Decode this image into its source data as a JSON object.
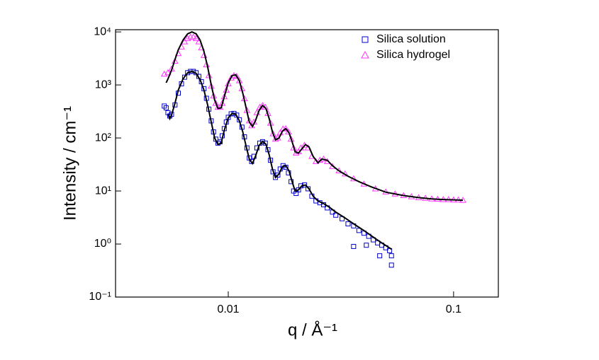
{
  "chart_data": {
    "type": "scatter",
    "x_label": "q / Å⁻¹",
    "y_label": "Intensity / cm⁻¹",
    "log_x": true,
    "log_y": true,
    "legend": "upper right",
    "xlim": [
      0.00316,
      0.158
    ],
    "ylim": [
      0.1,
      11000
    ],
    "xticks": [
      0.01,
      0.1
    ],
    "yticks": [
      {
        "value": 0.1,
        "label": "10⁻¹"
      },
      {
        "value": 1,
        "label": "10⁰"
      },
      {
        "value": 10,
        "label": "10¹"
      },
      {
        "value": 100,
        "label": "10²"
      },
      {
        "value": 1000,
        "label": "10³"
      },
      {
        "value": 10000,
        "label": "10⁴"
      }
    ],
    "series": [
      {
        "name": "Silica solution",
        "color": "#0000cc",
        "marker": "square",
        "x": [
          0.0052,
          0.0053,
          0.0054,
          0.0055,
          0.0056,
          0.0058,
          0.006,
          0.0062,
          0.0064,
          0.0066,
          0.0068,
          0.007,
          0.0072,
          0.0074,
          0.0076,
          0.0078,
          0.008,
          0.0082,
          0.0084,
          0.0086,
          0.0088,
          0.009,
          0.0092,
          0.0094,
          0.0096,
          0.0098,
          0.01,
          0.0103,
          0.0106,
          0.0109,
          0.0112,
          0.0115,
          0.0118,
          0.0121,
          0.0124,
          0.0127,
          0.013,
          0.0134,
          0.0138,
          0.0142,
          0.0146,
          0.015,
          0.0154,
          0.0158,
          0.0162,
          0.0166,
          0.017,
          0.0175,
          0.018,
          0.0185,
          0.019,
          0.0195,
          0.02,
          0.0205,
          0.021,
          0.0218,
          0.0226,
          0.0235,
          0.0245,
          0.0255,
          0.0265,
          0.0275,
          0.029,
          0.03,
          0.032,
          0.034,
          0.036,
          0.038,
          0.04,
          0.042,
          0.044,
          0.046,
          0.048,
          0.05,
          0.052,
          0.053,
          0.036,
          0.041,
          0.047,
          0.053
        ],
        "values": [
          400,
          370,
          300,
          260,
          280,
          420,
          700,
          1050,
          1400,
          1700,
          1800,
          1800,
          1700,
          1450,
          1150,
          850,
          560,
          350,
          210,
          130,
          95,
          80,
          85,
          110,
          150,
          200,
          245,
          285,
          290,
          270,
          220,
          160,
          105,
          65,
          42,
          36,
          45,
          65,
          80,
          85,
          80,
          60,
          38,
          23,
          18,
          20,
          26,
          30,
          28,
          22,
          15,
          10,
          9,
          10.5,
          12.5,
          13,
          11,
          8,
          6.5,
          6,
          5.5,
          4.8,
          4,
          3.5,
          3,
          2.4,
          2.2,
          1.8,
          1.6,
          1.4,
          1.2,
          1.05,
          0.95,
          0.85,
          0.75,
          0.6,
          0.9,
          0.95,
          0.6,
          0.4
        ]
      },
      {
        "name": "Silica hydrogel",
        "color": "#ff33ff",
        "marker": "triangle",
        "x": [
          0.0052,
          0.0054,
          0.0056,
          0.0058,
          0.006,
          0.0062,
          0.0064,
          0.0066,
          0.0068,
          0.007,
          0.0072,
          0.0074,
          0.0076,
          0.0078,
          0.008,
          0.0082,
          0.0084,
          0.0086,
          0.0088,
          0.009,
          0.0092,
          0.0094,
          0.0096,
          0.0098,
          0.01,
          0.0103,
          0.0106,
          0.0109,
          0.0112,
          0.0115,
          0.0118,
          0.0121,
          0.0124,
          0.0127,
          0.013,
          0.0134,
          0.0138,
          0.0142,
          0.0146,
          0.015,
          0.0154,
          0.0158,
          0.0162,
          0.0166,
          0.017,
          0.0175,
          0.018,
          0.0185,
          0.019,
          0.0195,
          0.02,
          0.0205,
          0.021,
          0.0218,
          0.0226,
          0.0235,
          0.0245,
          0.0255,
          0.0265,
          0.0275,
          0.029,
          0.031,
          0.033,
          0.036,
          0.04,
          0.045,
          0.05,
          0.055,
          0.06,
          0.065,
          0.07,
          0.075,
          0.08,
          0.085,
          0.09,
          0.095,
          0.1,
          0.105,
          0.11
        ],
        "values": [
          1600,
          1700,
          2000,
          2800,
          3900,
          5200,
          6500,
          7500,
          8000,
          8000,
          7500,
          6500,
          5000,
          3600,
          2400,
          1500,
          950,
          620,
          450,
          380,
          380,
          450,
          600,
          800,
          1050,
          1350,
          1500,
          1450,
          1200,
          850,
          550,
          330,
          210,
          170,
          200,
          300,
          380,
          410,
          380,
          290,
          190,
          120,
          95,
          100,
          125,
          148,
          150,
          130,
          95,
          65,
          52,
          55,
          65,
          73,
          65,
          45,
          36,
          38,
          40,
          36,
          29,
          24,
          21,
          17,
          13.5,
          11,
          9.6,
          8.8,
          8.2,
          7.8,
          7.5,
          7.3,
          7.1,
          7,
          6.9,
          6.9,
          6.8,
          6.8,
          6.7
        ]
      },
      {
        "color": "#000000",
        "style": "line",
        "x": [
          0.0054,
          0.0055,
          0.0056,
          0.0058,
          0.006,
          0.0063,
          0.0066,
          0.0069,
          0.0072,
          0.0075,
          0.0078,
          0.0081,
          0.0084,
          0.0087,
          0.009,
          0.0093,
          0.0096,
          0.01,
          0.0104,
          0.0108,
          0.0112,
          0.0116,
          0.012,
          0.0124,
          0.0128,
          0.0132,
          0.0137,
          0.0142,
          0.0147,
          0.0152,
          0.0157,
          0.0162,
          0.0168,
          0.0174,
          0.018,
          0.0186,
          0.0192,
          0.0198,
          0.0205,
          0.0212,
          0.022,
          0.0228,
          0.0238,
          0.025,
          0.0265,
          0.028,
          0.03,
          0.033,
          0.036,
          0.04,
          0.044,
          0.048,
          0.053
        ],
        "values": [
          280,
          230,
          270,
          450,
          800,
          1300,
          1700,
          1800,
          1650,
          1250,
          800,
          420,
          200,
          100,
          75,
          80,
          140,
          240,
          290,
          280,
          210,
          130,
          70,
          40,
          33,
          45,
          72,
          86,
          76,
          48,
          26,
          18,
          21,
          29,
          30,
          24,
          15,
          10,
          10.5,
          12.5,
          13,
          11,
          8,
          6.5,
          5.8,
          5,
          4,
          3.1,
          2.4,
          1.8,
          1.35,
          1.05,
          0.8
        ]
      },
      {
        "color": "#000000",
        "style": "line",
        "x": [
          0.0053,
          0.0054,
          0.0056,
          0.0058,
          0.006,
          0.0063,
          0.0066,
          0.0069,
          0.0072,
          0.0075,
          0.0078,
          0.0081,
          0.0084,
          0.0087,
          0.009,
          0.0093,
          0.0096,
          0.01,
          0.0104,
          0.0108,
          0.0112,
          0.0116,
          0.012,
          0.0124,
          0.0128,
          0.0132,
          0.0137,
          0.0142,
          0.0147,
          0.0152,
          0.0157,
          0.0162,
          0.0168,
          0.0174,
          0.018,
          0.0186,
          0.0192,
          0.0198,
          0.0205,
          0.0212,
          0.022,
          0.0228,
          0.0238,
          0.025,
          0.026,
          0.0275,
          0.029,
          0.031,
          0.034,
          0.038,
          0.043,
          0.05,
          0.06,
          0.07,
          0.08,
          0.09,
          0.1,
          0.11
        ],
        "values": [
          1100,
          1300,
          1900,
          3000,
          4600,
          7000,
          9200,
          10000,
          9200,
          7000,
          4300,
          2200,
          1000,
          520,
          360,
          370,
          600,
          1100,
          1500,
          1550,
          1200,
          700,
          370,
          200,
          165,
          210,
          330,
          410,
          360,
          230,
          130,
          92,
          100,
          135,
          150,
          125,
          85,
          55,
          52,
          62,
          75,
          68,
          45,
          34,
          40,
          38,
          30,
          24,
          19,
          15,
          12,
          9.5,
          8.2,
          7.5,
          7.1,
          6.9,
          6.8,
          6.7
        ]
      }
    ]
  }
}
